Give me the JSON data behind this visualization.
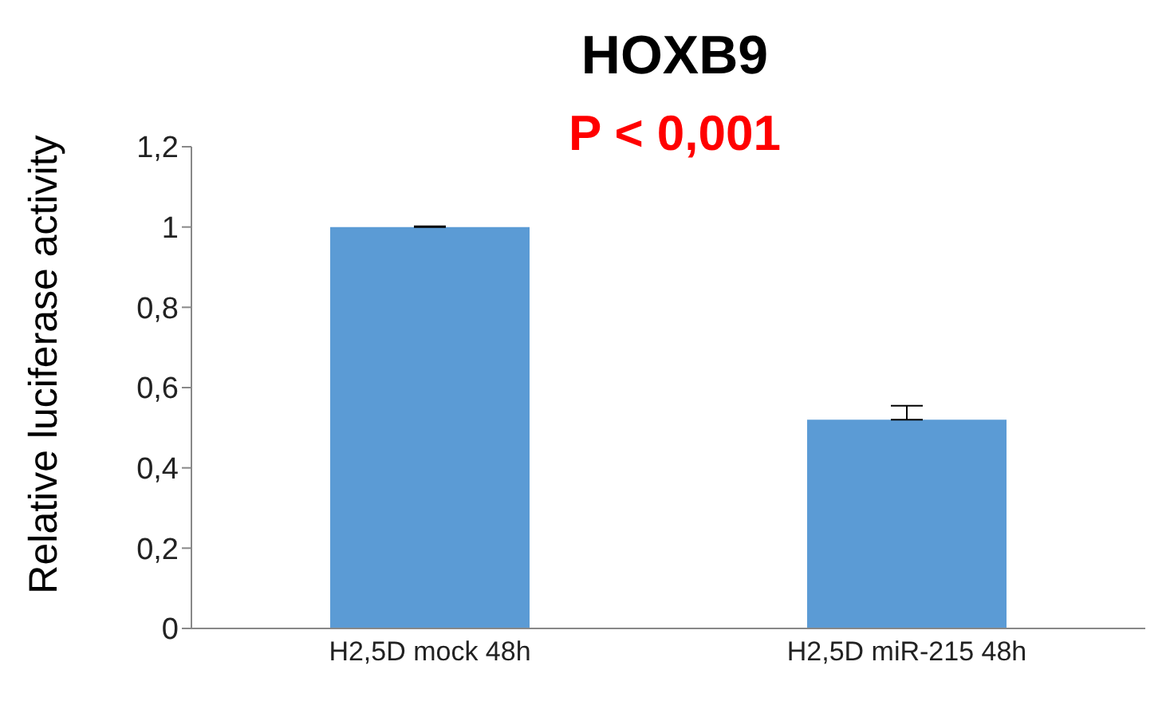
{
  "chart_data": {
    "type": "bar",
    "title": "HOXB9",
    "annotations": [
      "P < 0,001"
    ],
    "ylabel": "Relative luciferase activity",
    "categories": [
      "H2,5D mock 48h",
      "H2,5D miR-215 48h"
    ],
    "values": [
      1,
      0.52
    ],
    "errors": [
      [
        1,
        1.002
      ],
      [
        0.52,
        0.555
      ]
    ],
    "color": "#5b9bd5",
    "ylim": [
      0,
      1.2
    ],
    "yticks": [
      0,
      {
        "value": 0.2,
        "label": "0,2"
      },
      {
        "value": 0.4,
        "label": "0,4"
      },
      {
        "value": 0.6,
        "label": "0,6"
      },
      {
        "value": 0.8,
        "label": "0,8"
      },
      1,
      {
        "value": 1.2,
        "label": "1,2"
      }
    ],
    "grid": false,
    "legend": false
  }
}
